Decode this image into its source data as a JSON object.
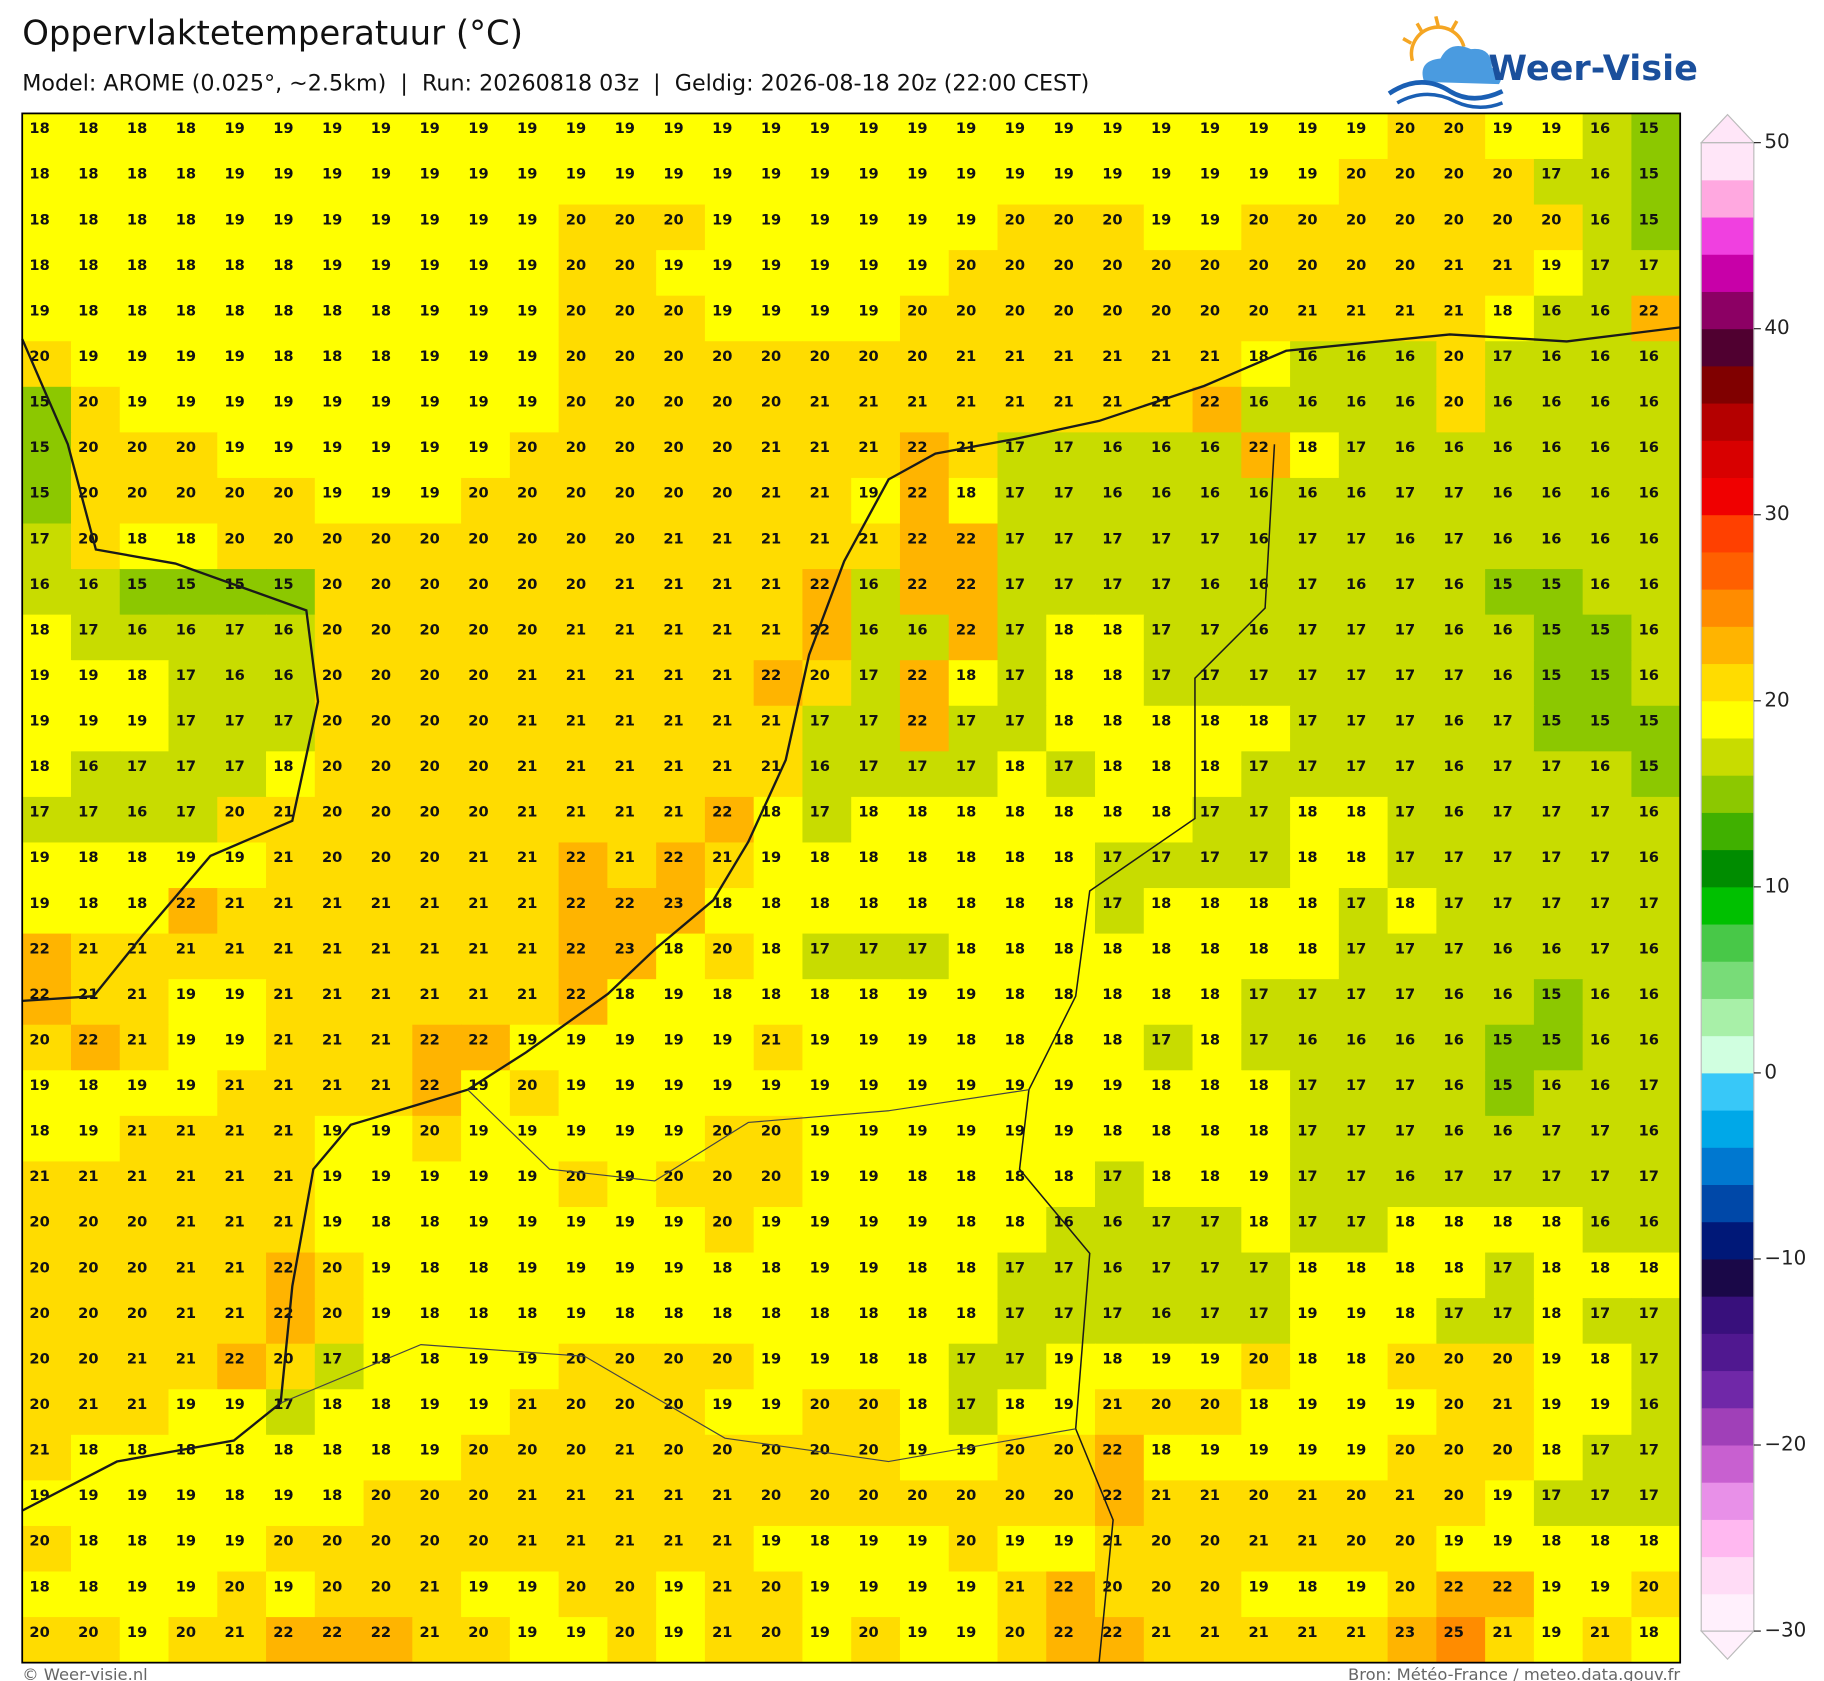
{
  "header": {
    "title": "Oppervlaktetemperatuur (°C)",
    "subtitle": "Model: AROME (0.025°, ~2.5km)  |  Run: 20260818 03z  |  Geldig: 2026-08-18 20z (22:00 CEST)"
  },
  "logo": {
    "text": "Weer-Visie"
  },
  "map": {
    "grid": [
      [
        18,
        18,
        18,
        18,
        19,
        19,
        19,
        19,
        19,
        19,
        19,
        19,
        19,
        19,
        19,
        19,
        19,
        19,
        19,
        19,
        19,
        19,
        19,
        19,
        19,
        19,
        19,
        19,
        20,
        20,
        19,
        19,
        16,
        15
      ],
      [
        18,
        18,
        18,
        18,
        19,
        19,
        19,
        19,
        19,
        19,
        19,
        19,
        19,
        19,
        19,
        19,
        19,
        19,
        19,
        19,
        19,
        19,
        19,
        19,
        19,
        19,
        19,
        20,
        20,
        20,
        20,
        17,
        16,
        15
      ],
      [
        18,
        18,
        18,
        18,
        19,
        19,
        19,
        19,
        19,
        19,
        19,
        20,
        20,
        20,
        19,
        19,
        19,
        19,
        19,
        19,
        20,
        20,
        20,
        19,
        19,
        20,
        20,
        20,
        20,
        20,
        20,
        20,
        16,
        15
      ],
      [
        18,
        18,
        18,
        18,
        18,
        18,
        19,
        19,
        19,
        19,
        19,
        20,
        20,
        19,
        19,
        19,
        19,
        19,
        19,
        20,
        20,
        20,
        20,
        20,
        20,
        20,
        20,
        20,
        20,
        21,
        21,
        19,
        17,
        17
      ],
      [
        19,
        18,
        18,
        18,
        18,
        18,
        18,
        18,
        19,
        19,
        19,
        20,
        20,
        20,
        19,
        19,
        19,
        19,
        20,
        20,
        20,
        20,
        20,
        20,
        20,
        20,
        21,
        21,
        21,
        21,
        18,
        16,
        16,
        22
      ],
      [
        20,
        19,
        19,
        19,
        19,
        18,
        18,
        18,
        19,
        19,
        19,
        20,
        20,
        20,
        20,
        20,
        20,
        20,
        20,
        21,
        21,
        21,
        21,
        21,
        21,
        18,
        16,
        16,
        16,
        20,
        17,
        16,
        16,
        16
      ],
      [
        15,
        20,
        19,
        19,
        19,
        19,
        19,
        19,
        19,
        19,
        19,
        20,
        20,
        20,
        20,
        20,
        21,
        21,
        21,
        21,
        21,
        21,
        21,
        21,
        22,
        16,
        16,
        16,
        16,
        20,
        16,
        16,
        16,
        16
      ],
      [
        15,
        20,
        20,
        20,
        19,
        19,
        19,
        19,
        19,
        19,
        20,
        20,
        20,
        20,
        20,
        21,
        21,
        21,
        22,
        21,
        17,
        17,
        16,
        16,
        16,
        22,
        18,
        17,
        16,
        16,
        16,
        16,
        16,
        16
      ],
      [
        15,
        20,
        20,
        20,
        20,
        20,
        19,
        19,
        19,
        20,
        20,
        20,
        20,
        20,
        20,
        21,
        21,
        19,
        22,
        18,
        17,
        17,
        16,
        16,
        16,
        16,
        16,
        16,
        17,
        17,
        16,
        16,
        16,
        16
      ],
      [
        17,
        20,
        18,
        18,
        20,
        20,
        20,
        20,
        20,
        20,
        20,
        20,
        20,
        21,
        21,
        21,
        21,
        21,
        22,
        22,
        17,
        17,
        17,
        17,
        17,
        16,
        17,
        17,
        16,
        17,
        16,
        16,
        16,
        16
      ],
      [
        16,
        16,
        15,
        15,
        15,
        15,
        20,
        20,
        20,
        20,
        20,
        20,
        21,
        21,
        21,
        21,
        22,
        16,
        22,
        22,
        17,
        17,
        17,
        17,
        16,
        16,
        17,
        16,
        17,
        16,
        15,
        15,
        16,
        16
      ],
      [
        18,
        17,
        16,
        16,
        17,
        16,
        20,
        20,
        20,
        20,
        20,
        21,
        21,
        21,
        21,
        21,
        22,
        16,
        16,
        22,
        17,
        18,
        18,
        17,
        17,
        16,
        17,
        17,
        17,
        16,
        16,
        15,
        15,
        16
      ],
      [
        19,
        19,
        18,
        17,
        16,
        16,
        20,
        20,
        20,
        20,
        21,
        21,
        21,
        21,
        21,
        22,
        20,
        17,
        22,
        18,
        17,
        18,
        18,
        17,
        17,
        17,
        17,
        17,
        17,
        17,
        16,
        15,
        15,
        16
      ],
      [
        19,
        19,
        19,
        17,
        17,
        17,
        20,
        20,
        20,
        20,
        21,
        21,
        21,
        21,
        21,
        21,
        17,
        17,
        22,
        17,
        17,
        18,
        18,
        18,
        18,
        18,
        17,
        17,
        17,
        16,
        17,
        15,
        15,
        15
      ],
      [
        18,
        16,
        17,
        17,
        17,
        18,
        20,
        20,
        20,
        20,
        21,
        21,
        21,
        21,
        21,
        21,
        16,
        17,
        17,
        17,
        18,
        17,
        18,
        18,
        18,
        17,
        17,
        17,
        17,
        16,
        17,
        17,
        16,
        15
      ],
      [
        17,
        17,
        16,
        17,
        20,
        21,
        20,
        20,
        20,
        20,
        21,
        21,
        21,
        21,
        22,
        18,
        17,
        18,
        18,
        18,
        18,
        18,
        18,
        18,
        17,
        17,
        18,
        18,
        17,
        16,
        17,
        17,
        17,
        16
      ],
      [
        19,
        18,
        18,
        19,
        19,
        21,
        20,
        20,
        20,
        21,
        21,
        22,
        21,
        22,
        21,
        19,
        18,
        18,
        18,
        18,
        18,
        18,
        17,
        17,
        17,
        17,
        18,
        18,
        17,
        17,
        17,
        17,
        17,
        16
      ],
      [
        19,
        18,
        18,
        22,
        21,
        21,
        21,
        21,
        21,
        21,
        21,
        22,
        22,
        23,
        18,
        18,
        18,
        18,
        18,
        18,
        18,
        18,
        17,
        18,
        18,
        18,
        18,
        17,
        18,
        17,
        17,
        17,
        17,
        17
      ],
      [
        22,
        21,
        21,
        21,
        21,
        21,
        21,
        21,
        21,
        21,
        21,
        22,
        23,
        18,
        20,
        18,
        17,
        17,
        17,
        18,
        18,
        18,
        18,
        18,
        18,
        18,
        18,
        17,
        17,
        17,
        16,
        16,
        17,
        16
      ],
      [
        22,
        21,
        21,
        19,
        19,
        21,
        21,
        21,
        21,
        21,
        21,
        22,
        18,
        19,
        18,
        18,
        18,
        18,
        19,
        19,
        18,
        18,
        18,
        18,
        18,
        17,
        17,
        17,
        17,
        16,
        16,
        15,
        16,
        16
      ],
      [
        20,
        22,
        21,
        19,
        19,
        21,
        21,
        21,
        22,
        22,
        19,
        19,
        19,
        19,
        19,
        21,
        19,
        19,
        19,
        18,
        18,
        18,
        18,
        17,
        18,
        17,
        16,
        16,
        16,
        16,
        15,
        15,
        16,
        16
      ],
      [
        19,
        18,
        19,
        19,
        21,
        21,
        21,
        21,
        22,
        19,
        20,
        19,
        19,
        19,
        19,
        19,
        19,
        19,
        19,
        19,
        19,
        19,
        19,
        18,
        18,
        18,
        17,
        17,
        17,
        16,
        15,
        16,
        16,
        17
      ],
      [
        18,
        19,
        21,
        21,
        21,
        21,
        19,
        19,
        20,
        19,
        19,
        19,
        19,
        19,
        20,
        20,
        19,
        19,
        19,
        19,
        19,
        19,
        18,
        18,
        18,
        18,
        17,
        17,
        17,
        16,
        16,
        17,
        17,
        16
      ],
      [
        21,
        21,
        21,
        21,
        21,
        21,
        19,
        19,
        19,
        19,
        19,
        20,
        19,
        20,
        20,
        20,
        19,
        19,
        18,
        18,
        18,
        18,
        17,
        18,
        18,
        19,
        17,
        17,
        16,
        17,
        17,
        17,
        17,
        17
      ],
      [
        20,
        20,
        20,
        21,
        21,
        21,
        19,
        18,
        18,
        19,
        19,
        19,
        19,
        19,
        20,
        19,
        19,
        19,
        19,
        18,
        18,
        16,
        16,
        17,
        17,
        18,
        17,
        17,
        18,
        18,
        18,
        18,
        16,
        16
      ],
      [
        20,
        20,
        20,
        21,
        21,
        22,
        20,
        19,
        18,
        18,
        19,
        19,
        19,
        19,
        18,
        18,
        19,
        19,
        18,
        18,
        17,
        17,
        16,
        17,
        17,
        17,
        18,
        18,
        18,
        18,
        17,
        18,
        18,
        18
      ],
      [
        20,
        20,
        20,
        21,
        21,
        22,
        20,
        19,
        18,
        18,
        18,
        19,
        18,
        18,
        18,
        18,
        18,
        18,
        18,
        18,
        17,
        17,
        17,
        16,
        17,
        17,
        19,
        19,
        18,
        17,
        17,
        18,
        17,
        17
      ],
      [
        20,
        20,
        21,
        21,
        22,
        20,
        17,
        18,
        18,
        19,
        19,
        20,
        20,
        20,
        20,
        19,
        19,
        18,
        18,
        17,
        17,
        19,
        18,
        19,
        19,
        20,
        18,
        18,
        20,
        20,
        20,
        19,
        18,
        17
      ],
      [
        20,
        21,
        21,
        19,
        19,
        17,
        18,
        18,
        19,
        19,
        21,
        20,
        20,
        20,
        19,
        19,
        20,
        20,
        18,
        17,
        18,
        19,
        21,
        20,
        20,
        18,
        19,
        19,
        19,
        20,
        21,
        19,
        19,
        16
      ],
      [
        21,
        18,
        18,
        18,
        18,
        18,
        18,
        18,
        19,
        20,
        20,
        20,
        21,
        20,
        20,
        20,
        20,
        20,
        19,
        19,
        20,
        20,
        22,
        18,
        19,
        19,
        19,
        19,
        20,
        20,
        20,
        18,
        17,
        17
      ],
      [
        19,
        19,
        19,
        19,
        18,
        19,
        18,
        20,
        20,
        20,
        21,
        21,
        21,
        21,
        21,
        20,
        20,
        20,
        20,
        20,
        20,
        20,
        22,
        21,
        21,
        20,
        21,
        20,
        21,
        20,
        19,
        17,
        17,
        17
      ],
      [
        20,
        18,
        18,
        19,
        19,
        20,
        20,
        20,
        20,
        20,
        21,
        21,
        21,
        21,
        21,
        19,
        18,
        19,
        19,
        20,
        19,
        19,
        21,
        20,
        20,
        21,
        21,
        20,
        20,
        19,
        19,
        18,
        18,
        18
      ],
      [
        18,
        18,
        19,
        19,
        20,
        19,
        20,
        20,
        21,
        19,
        19,
        20,
        20,
        19,
        21,
        20,
        19,
        19,
        19,
        19,
        21,
        22,
        20,
        20,
        20,
        19,
        18,
        19,
        20,
        22,
        22,
        19,
        19,
        20
      ],
      [
        20,
        20,
        19,
        20,
        21,
        22,
        22,
        22,
        21,
        20,
        19,
        19,
        20,
        19,
        21,
        20,
        19,
        20,
        19,
        19,
        20,
        22,
        22,
        21,
        21,
        21,
        21,
        21,
        23,
        25,
        21,
        19,
        21,
        18
      ]
    ]
  },
  "colorbar": {
    "lim": [
      -30,
      50
    ],
    "ticks": [
      {
        "value": -30,
        "label": "−30"
      },
      {
        "value": -20,
        "label": "−20"
      },
      {
        "value": -10,
        "label": "−10"
      },
      0,
      10,
      20,
      30,
      40,
      50
    ],
    "colors": [
      "#fff0fc",
      "#ffdcf6",
      "#ffb8f0",
      "#e890e8",
      "#c860d0",
      "#a040b8",
      "#7028a8",
      "#501890",
      "#38107c",
      "#1a0848",
      "#001878",
      "#0048a8",
      "#0078d0",
      "#00a8e8",
      "#38c8f8",
      "#d0ffe0",
      "#a8f0a8",
      "#78dc78",
      "#48c848",
      "#00c000",
      "#008c00",
      "#40b000",
      "#8cc800",
      "#c8dc00",
      "#ffff00",
      "#ffdc00",
      "#ffb400",
      "#ff8c00",
      "#ff6000",
      "#ff4000",
      "#f00000",
      "#d80000",
      "#b40000",
      "#800000",
      "#500030",
      "#8c0064",
      "#c800a8",
      "#f040e0",
      "#ffa8e0",
      "#ffe6f8"
    ]
  },
  "footer": {
    "left": "© Weer-visie.nl",
    "right": "Bron: Météo-France / meteo.data.gouv.fr"
  }
}
